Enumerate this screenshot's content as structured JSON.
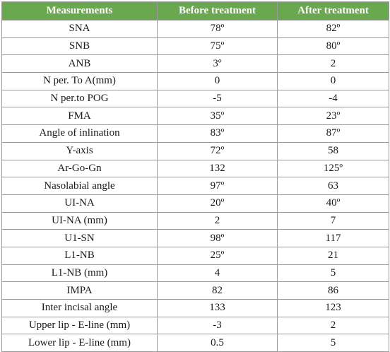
{
  "table": {
    "headers": [
      "Measurements",
      "Before treatment",
      "After treatment"
    ],
    "rows": [
      [
        "SNA",
        "78º",
        "82º"
      ],
      [
        "SNB",
        "75º",
        "80º"
      ],
      [
        "ANB",
        "3º",
        "2"
      ],
      [
        "N per. To A(mm)",
        "0",
        "0"
      ],
      [
        "N per.to POG",
        "-5",
        "-4"
      ],
      [
        "FMA",
        "35º",
        "23º"
      ],
      [
        "Angle of inlination",
        "83º",
        "87º"
      ],
      [
        "Y-axis",
        "72º",
        "58"
      ],
      [
        "Ar-Go-Gn",
        "132",
        "125º"
      ],
      [
        "Nasolabial angle",
        "97º",
        "63"
      ],
      [
        "UI-NA",
        "20º",
        "40º"
      ],
      [
        "UI-NA (mm)",
        "2",
        "7"
      ],
      [
        "U1-SN",
        "98º",
        "117"
      ],
      [
        "L1-NB",
        "25º",
        "21"
      ],
      [
        "L1-NB (mm)",
        "4",
        "5"
      ],
      [
        "IMPA",
        "82",
        "86"
      ],
      [
        "Inter incisal angle",
        "133",
        "123"
      ],
      [
        "Upper lip - E-line (mm)",
        "-3",
        "2"
      ],
      [
        "Lower lip - E-line (mm)",
        "0.5",
        "5"
      ]
    ]
  },
  "colors": {
    "header_background": "#6aa84f",
    "header_text": "#ffffff",
    "border": "#9a9a9a"
  }
}
